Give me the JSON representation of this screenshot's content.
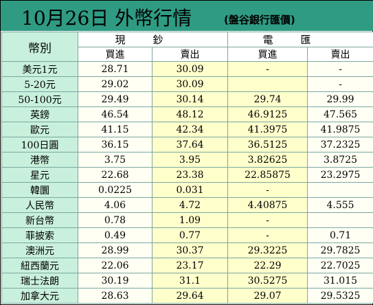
{
  "header": {
    "title": "10月26日 外幣行情",
    "bank": "(盤谷銀行匯價)"
  },
  "table": {
    "corner_label": "幣別",
    "groups": [
      "現鈔",
      "電匯"
    ],
    "subheaders": [
      "買進",
      "賣出",
      "買進",
      "賣出"
    ],
    "rows": [
      {
        "currency": "美元1元",
        "values": [
          "28.71",
          "30.09",
          "-",
          "-"
        ]
      },
      {
        "currency": "5-20元",
        "values": [
          "29.02",
          "30.09",
          "",
          "-"
        ]
      },
      {
        "currency": "50-100元",
        "values": [
          "29.49",
          "30.14",
          "29.74",
          "29.99"
        ]
      },
      {
        "currency": "英鎊",
        "values": [
          "46.54",
          "48.12",
          "46.9125",
          "47.565"
        ]
      },
      {
        "currency": "歐元",
        "values": [
          "41.15",
          "42.34",
          "41.3975",
          "41.9875"
        ]
      },
      {
        "currency": "100日圓",
        "values": [
          "36.15",
          "37.64",
          "36.5125",
          "37.2325"
        ]
      },
      {
        "currency": "港幣",
        "values": [
          "3.75",
          "3.95",
          "3.82625",
          "3.8725"
        ]
      },
      {
        "currency": "星元",
        "values": [
          "22.68",
          "23.38",
          "22.85875",
          "23.2975"
        ]
      },
      {
        "currency": "韓圜",
        "values": [
          "0.0225",
          "0.031",
          "-",
          ""
        ]
      },
      {
        "currency": "人民幣",
        "values": [
          "4.06",
          "4.72",
          "4.40875",
          "4.555"
        ]
      },
      {
        "currency": "新台幣",
        "values": [
          "0.78",
          "1.09",
          "-",
          ""
        ]
      },
      {
        "currency": "菲披索",
        "values": [
          "0.49",
          "0.77",
          "-",
          "0.71"
        ]
      },
      {
        "currency": "澳洲元",
        "values": [
          "28.99",
          "30.37",
          "29.3225",
          "29.7825"
        ]
      },
      {
        "currency": "紐西蘭元",
        "values": [
          "22.06",
          "23.17",
          "22.29",
          "22.7025"
        ]
      },
      {
        "currency": "瑞士法朗",
        "values": [
          "30.19",
          "31.1",
          "30.5275",
          "31.015"
        ]
      },
      {
        "currency": "加拿大元",
        "values": [
          "28.63",
          "29.64",
          "29.07",
          "29.5325"
        ]
      }
    ]
  },
  "colors": {
    "header_bg": "#2f9b83",
    "label_bg": "#c8f0dc",
    "cell_bg": "#fffff4",
    "cell_bg_shaded": "#ffffcc"
  }
}
